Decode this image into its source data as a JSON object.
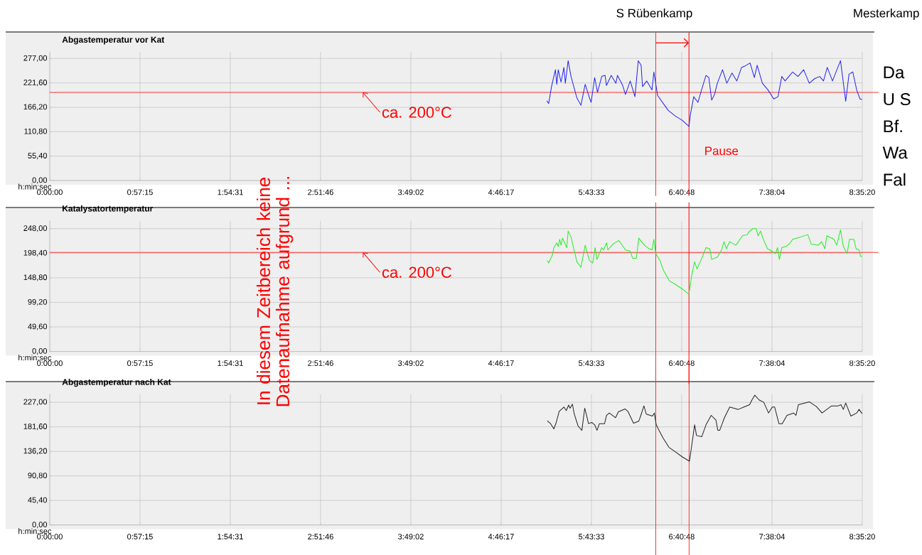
{
  "chart_data": [
    {
      "type": "line",
      "title": "Abgastemperatur vor Kat",
      "xlabel": "h:min:sec",
      "grid": true,
      "marker": "none",
      "xlim": [
        0,
        8.5889
      ],
      "ylim": [
        0,
        292
      ],
      "xticks": [
        {
          "value": 0,
          "label": "0:00:00"
        },
        {
          "value": 0.9542,
          "label": "0:57:15"
        },
        {
          "value": 1.9086,
          "label": "1:54:31"
        },
        {
          "value": 2.8628,
          "label": "2:51:46"
        },
        {
          "value": 3.8172,
          "label": "3:49:02"
        },
        {
          "value": 4.7714,
          "label": "4:46:17"
        },
        {
          "value": 5.7258,
          "label": "5:43:33"
        },
        {
          "value": 6.68,
          "label": "6:40:48"
        },
        {
          "value": 7.6344,
          "label": "7:38:04"
        },
        {
          "value": 8.5889,
          "label": "8:35:20"
        }
      ],
      "yticks": [
        {
          "value": 0,
          "label": "0,00"
        },
        {
          "value": 55.4,
          "label": "55,40"
        },
        {
          "value": 110.8,
          "label": "110,80"
        },
        {
          "value": 166.2,
          "label": "166,20"
        },
        {
          "value": 221.6,
          "label": "221,60"
        },
        {
          "value": 277,
          "label": "277,00"
        }
      ],
      "series": [
        {
          "color": "#2222ee",
          "x": [
            5.254,
            5.274,
            5.304,
            5.345,
            5.36,
            5.375,
            5.405,
            5.435,
            5.45,
            5.48,
            5.51,
            5.572,
            5.615,
            5.66,
            5.705,
            5.723,
            5.76,
            5.79,
            5.835,
            5.87,
            5.885,
            5.935,
            5.985,
            6.001,
            6.056,
            6.086,
            6.136,
            6.186,
            6.221,
            6.251,
            6.266,
            6.311,
            6.366,
            6.386,
            6.426,
            6.486,
            6.536,
            6.611,
            6.687,
            6.757,
            6.772,
            6.807,
            6.852,
            6.897,
            6.937,
            6.967,
            6.997,
            7.027,
            7.057,
            7.112,
            7.157,
            7.212,
            7.263,
            7.313,
            7.343,
            7.403,
            7.448,
            7.478,
            7.533,
            7.593,
            7.653,
            7.698,
            7.738,
            7.773,
            7.813,
            7.853,
            7.909,
            7.969,
            8.029,
            8.084,
            8.139,
            8.179,
            8.219,
            8.274,
            8.359,
            8.414,
            8.449,
            8.489,
            8.53,
            8.565,
            8.588
          ],
          "values": [
            181.0,
            174.8,
            213.2,
            251.5,
            218.3,
            251.5,
            223.4,
            256.6,
            220.8,
            272.0,
            236.2,
            187.6,
            170.8,
            218.3,
            187.6,
            177.4,
            233.6,
            200.4,
            236.2,
            238.7,
            215.7,
            238.7,
            220.8,
            238.7,
            215.7,
            195.3,
            226.0,
            190.2,
            272.0,
            261.7,
            213.2,
            226.0,
            205.5,
            246.4,
            192.7,
            174.8,
            159.5,
            146.7,
            136.5,
            122.7,
            149.3,
            190.2,
            177.4,
            210.6,
            238.7,
            233.6,
            182.5,
            195.3,
            220.8,
            251.5,
            220.8,
            243.9,
            226.0,
            256.6,
            259.2,
            266.9,
            233.6,
            261.7,
            220.8,
            205.5,
            185.1,
            190.2,
            236.2,
            226.0,
            236.2,
            246.4,
            236.2,
            251.5,
            220.8,
            231.1,
            236.2,
            226.0,
            256.6,
            226.0,
            272.0,
            180.0,
            241.3,
            246.4,
            205.5,
            185.1,
            184.0
          ]
        }
      ],
      "ref_lines": [
        {
          "axis": "y",
          "value": 200,
          "color": "#ff0000"
        },
        {
          "axis": "x",
          "value": 6.406,
          "label": "S Rübenkamp",
          "color": "#ff3030"
        },
        {
          "axis": "x",
          "value": 6.757,
          "label": "Pause",
          "color": "#ff0000"
        }
      ],
      "annotations": [
        {
          "text": "ca. 200°C",
          "x": 3.31,
          "y": 200
        },
        "Mesterkamp",
        "Da",
        "U S",
        "Bf.",
        "Wa",
        "Fal"
      ]
    },
    {
      "type": "line",
      "title": "Katalysatortemperatur",
      "xlabel": "h:min:sec",
      "grid": true,
      "marker": "none",
      "xlim": [
        0,
        8.5889
      ],
      "ylim": [
        0,
        264
      ],
      "xticks": [
        {
          "value": 0,
          "label": "0:00:00"
        },
        {
          "value": 0.9542,
          "label": "0:57:15"
        },
        {
          "value": 1.9086,
          "label": "1:54:31"
        },
        {
          "value": 2.8628,
          "label": "2:51:46"
        },
        {
          "value": 3.8172,
          "label": "3:49:02"
        },
        {
          "value": 4.7714,
          "label": "4:46:17"
        },
        {
          "value": 5.7258,
          "label": "5:43:33"
        },
        {
          "value": 6.68,
          "label": "6:40:48"
        },
        {
          "value": 7.6344,
          "label": "7:38:04"
        },
        {
          "value": 8.5889,
          "label": "8:35:20"
        }
      ],
      "yticks": [
        {
          "value": 0,
          "label": "0,00"
        },
        {
          "value": 49.6,
          "label": "49,60"
        },
        {
          "value": 99.2,
          "label": "99,20"
        },
        {
          "value": 148.8,
          "label": "148,80"
        },
        {
          "value": 198.4,
          "label": "198,40"
        },
        {
          "value": 248,
          "label": "248,00"
        }
      ],
      "series": [
        {
          "color": "#22ee22",
          "x": [
            5.259,
            5.274,
            5.314,
            5.329,
            5.36,
            5.375,
            5.39,
            5.405,
            5.42,
            5.465,
            5.48,
            5.51,
            5.572,
            5.615,
            5.66,
            5.705,
            5.74,
            5.765,
            5.785,
            5.835,
            5.855,
            5.885,
            5.9,
            5.955,
            6.016,
            6.086,
            6.136,
            6.161,
            6.201,
            6.226,
            6.286,
            6.336,
            6.366,
            6.386,
            6.406,
            6.451,
            6.486,
            6.549,
            6.611,
            6.687,
            6.757,
            6.787,
            6.817,
            6.842,
            6.887,
            6.937,
            6.977,
            6.997,
            7.057,
            7.102,
            7.127,
            7.152,
            7.188,
            7.253,
            7.323,
            7.373,
            7.398,
            7.433,
            7.468,
            7.488,
            7.513,
            7.548,
            7.588,
            7.673,
            7.693,
            7.713,
            7.738,
            7.783,
            7.828,
            7.853,
            7.939,
            8.014,
            8.049,
            8.124,
            8.159,
            8.194,
            8.214,
            8.289,
            8.319,
            8.359,
            8.389,
            8.429,
            8.454,
            8.499,
            8.524,
            8.555,
            8.57,
            8.588
          ],
          "values": [
            183.5,
            178.7,
            195.4,
            209.7,
            219.3,
            212.1,
            226.5,
            214.5,
            228.9,
            209.7,
            243.2,
            231.3,
            181.1,
            170.1,
            214.5,
            183.5,
            178.7,
            209.7,
            185.8,
            209.7,
            205.0,
            219.3,
            205.0,
            216.9,
            224.1,
            205.0,
            202.6,
            188.2,
            188.2,
            228.9,
            214.5,
            207.4,
            205.0,
            226.5,
            197.8,
            183.5,
            164.3,
            142.8,
            135.7,
            126.1,
            115.6,
            154.8,
            181.1,
            166.7,
            185.8,
            209.7,
            207.4,
            185.8,
            190.6,
            205.0,
            221.7,
            207.4,
            221.7,
            214.5,
            233.6,
            236.0,
            243.2,
            248.0,
            248.0,
            233.6,
            243.2,
            224.1,
            207.4,
            197.8,
            209.7,
            185.8,
            209.7,
            212.1,
            219.3,
            226.5,
            231.3,
            236.0,
            216.9,
            214.5,
            221.7,
            207.4,
            233.6,
            226.5,
            214.5,
            245.6,
            212.1,
            197.8,
            226.5,
            226.5,
            207.4,
            205.0,
            192.1,
            192.1
          ]
        }
      ],
      "ref_lines": [
        {
          "axis": "y",
          "value": 200,
          "color": "#ff0000"
        },
        {
          "axis": "x",
          "value": 6.406,
          "color": "#ff3030"
        },
        {
          "axis": "x",
          "value": 6.757,
          "color": "#ff0000"
        }
      ],
      "annotations": [
        {
          "text": "ca. 200°C",
          "x": 3.31,
          "y": 200
        },
        "In diesem Zeitbereich keine Datenaufnahme aufgrund ..."
      ]
    },
    {
      "type": "line",
      "title": "Abgastemperatur nach Kat",
      "xlabel": "h:min:sec",
      "grid": true,
      "marker": "none",
      "xlim": [
        0,
        8.5889
      ],
      "ylim": [
        0,
        242
      ],
      "xticks": [
        {
          "value": 0,
          "label": "0:00:00"
        },
        {
          "value": 0.9542,
          "label": "0:57:15"
        },
        {
          "value": 1.9086,
          "label": "1:54:31"
        },
        {
          "value": 2.8628,
          "label": "2:51:46"
        },
        {
          "value": 3.8172,
          "label": "3:49:02"
        },
        {
          "value": 4.7714,
          "label": "4:46:17"
        },
        {
          "value": 5.7258,
          "label": "5:43:33"
        },
        {
          "value": 6.68,
          "label": "6:40:48"
        },
        {
          "value": 7.6344,
          "label": "7:38:04"
        },
        {
          "value": 8.5889,
          "label": "8:35:20"
        }
      ],
      "yticks": [
        {
          "value": 0,
          "label": "0,00"
        },
        {
          "value": 45.4,
          "label": "45,40"
        },
        {
          "value": 90.8,
          "label": "90,80"
        },
        {
          "value": 136.2,
          "label": "136,20"
        },
        {
          "value": 181.6,
          "label": "181,60"
        },
        {
          "value": 227,
          "label": "227,00"
        }
      ],
      "series": [
        {
          "color": "#222222",
          "x": [
            5.259,
            5.294,
            5.329,
            5.354,
            5.385,
            5.435,
            5.46,
            5.485,
            5.5,
            5.525,
            5.545,
            5.585,
            5.625,
            5.655,
            5.675,
            5.695,
            5.73,
            5.76,
            5.785,
            5.81,
            5.865,
            5.885,
            5.915,
            5.981,
            6.011,
            6.081,
            6.111,
            6.171,
            6.226,
            6.246,
            6.281,
            6.306,
            6.371,
            6.391,
            6.411,
            6.436,
            6.486,
            6.546,
            6.611,
            6.687,
            6.762,
            6.787,
            6.817,
            6.837,
            6.892,
            6.937,
            6.992,
            7.042,
            7.062,
            7.082,
            7.132,
            7.188,
            7.278,
            7.338,
            7.398,
            7.423,
            7.453,
            7.498,
            7.548,
            7.598,
            7.638,
            7.663,
            7.708,
            7.743,
            7.793,
            7.863,
            7.888,
            7.914,
            8.029,
            8.104,
            8.164,
            8.264,
            8.334,
            8.364,
            8.389,
            8.414,
            8.469,
            8.53,
            8.555,
            8.588
          ],
          "values": [
            192.7,
            187.5,
            177.8,
            189.7,
            210.3,
            218.2,
            211.6,
            221.8,
            216.0,
            223.5,
            205.0,
            183.1,
            175.1,
            216.0,
            202.8,
            187.5,
            189.7,
            185.3,
            175.1,
            187.5,
            187.5,
            202.8,
            207.2,
            198.5,
            209.4,
            214.7,
            210.3,
            188.3,
            191.9,
            201.5,
            220.4,
            205.0,
            201.5,
            207.2,
            185.3,
            176.5,
            160.2,
            143.5,
            135.6,
            125.9,
            118.0,
            147.9,
            185.3,
            165.5,
            163.3,
            185.3,
            202.8,
            194.1,
            175.1,
            175.1,
            198.5,
            218.2,
            213.8,
            218.2,
            222.6,
            231.4,
            240.2,
            231.4,
            227.0,
            207.2,
            218.2,
            218.2,
            187.5,
            187.5,
            202.8,
            207.2,
            202.8,
            222.6,
            227.9,
            219.1,
            207.2,
            220.4,
            220.4,
            222.6,
            213.8,
            225.7,
            201.5,
            207.2,
            213.8,
            205.9
          ]
        }
      ],
      "ref_lines": [
        {
          "axis": "x",
          "value": 6.406,
          "color": "#ff3030"
        },
        {
          "axis": "x",
          "value": 6.757,
          "color": "#ff0000"
        }
      ]
    }
  ]
}
